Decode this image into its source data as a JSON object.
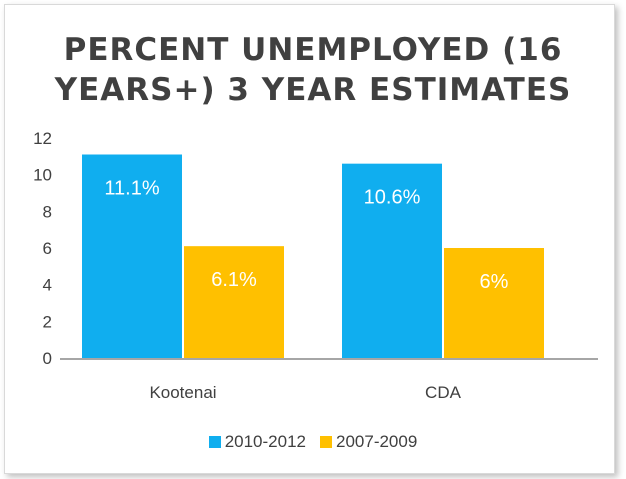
{
  "chart_data": {
    "type": "bar",
    "title": [
      "Percent Unemployed (16",
      "Years+) 3 Year Estimates"
    ],
    "categories": [
      "Kootenai",
      "CDA"
    ],
    "series": [
      {
        "name": "2010-2012",
        "values": [
          11.1,
          10.6
        ],
        "labels": [
          "11.1%",
          "10.6%"
        ],
        "color": "#10AEEF"
      },
      {
        "name": "2007-2009",
        "values": [
          6.1,
          6.0
        ],
        "labels": [
          "6.1%",
          "6%"
        ],
        "color": "#FFC000"
      }
    ],
    "yticks": [
      0,
      2,
      4,
      6,
      8,
      10,
      12
    ],
    "ylim": [
      0,
      12
    ],
    "grid": false,
    "legend_position": "bottom"
  }
}
